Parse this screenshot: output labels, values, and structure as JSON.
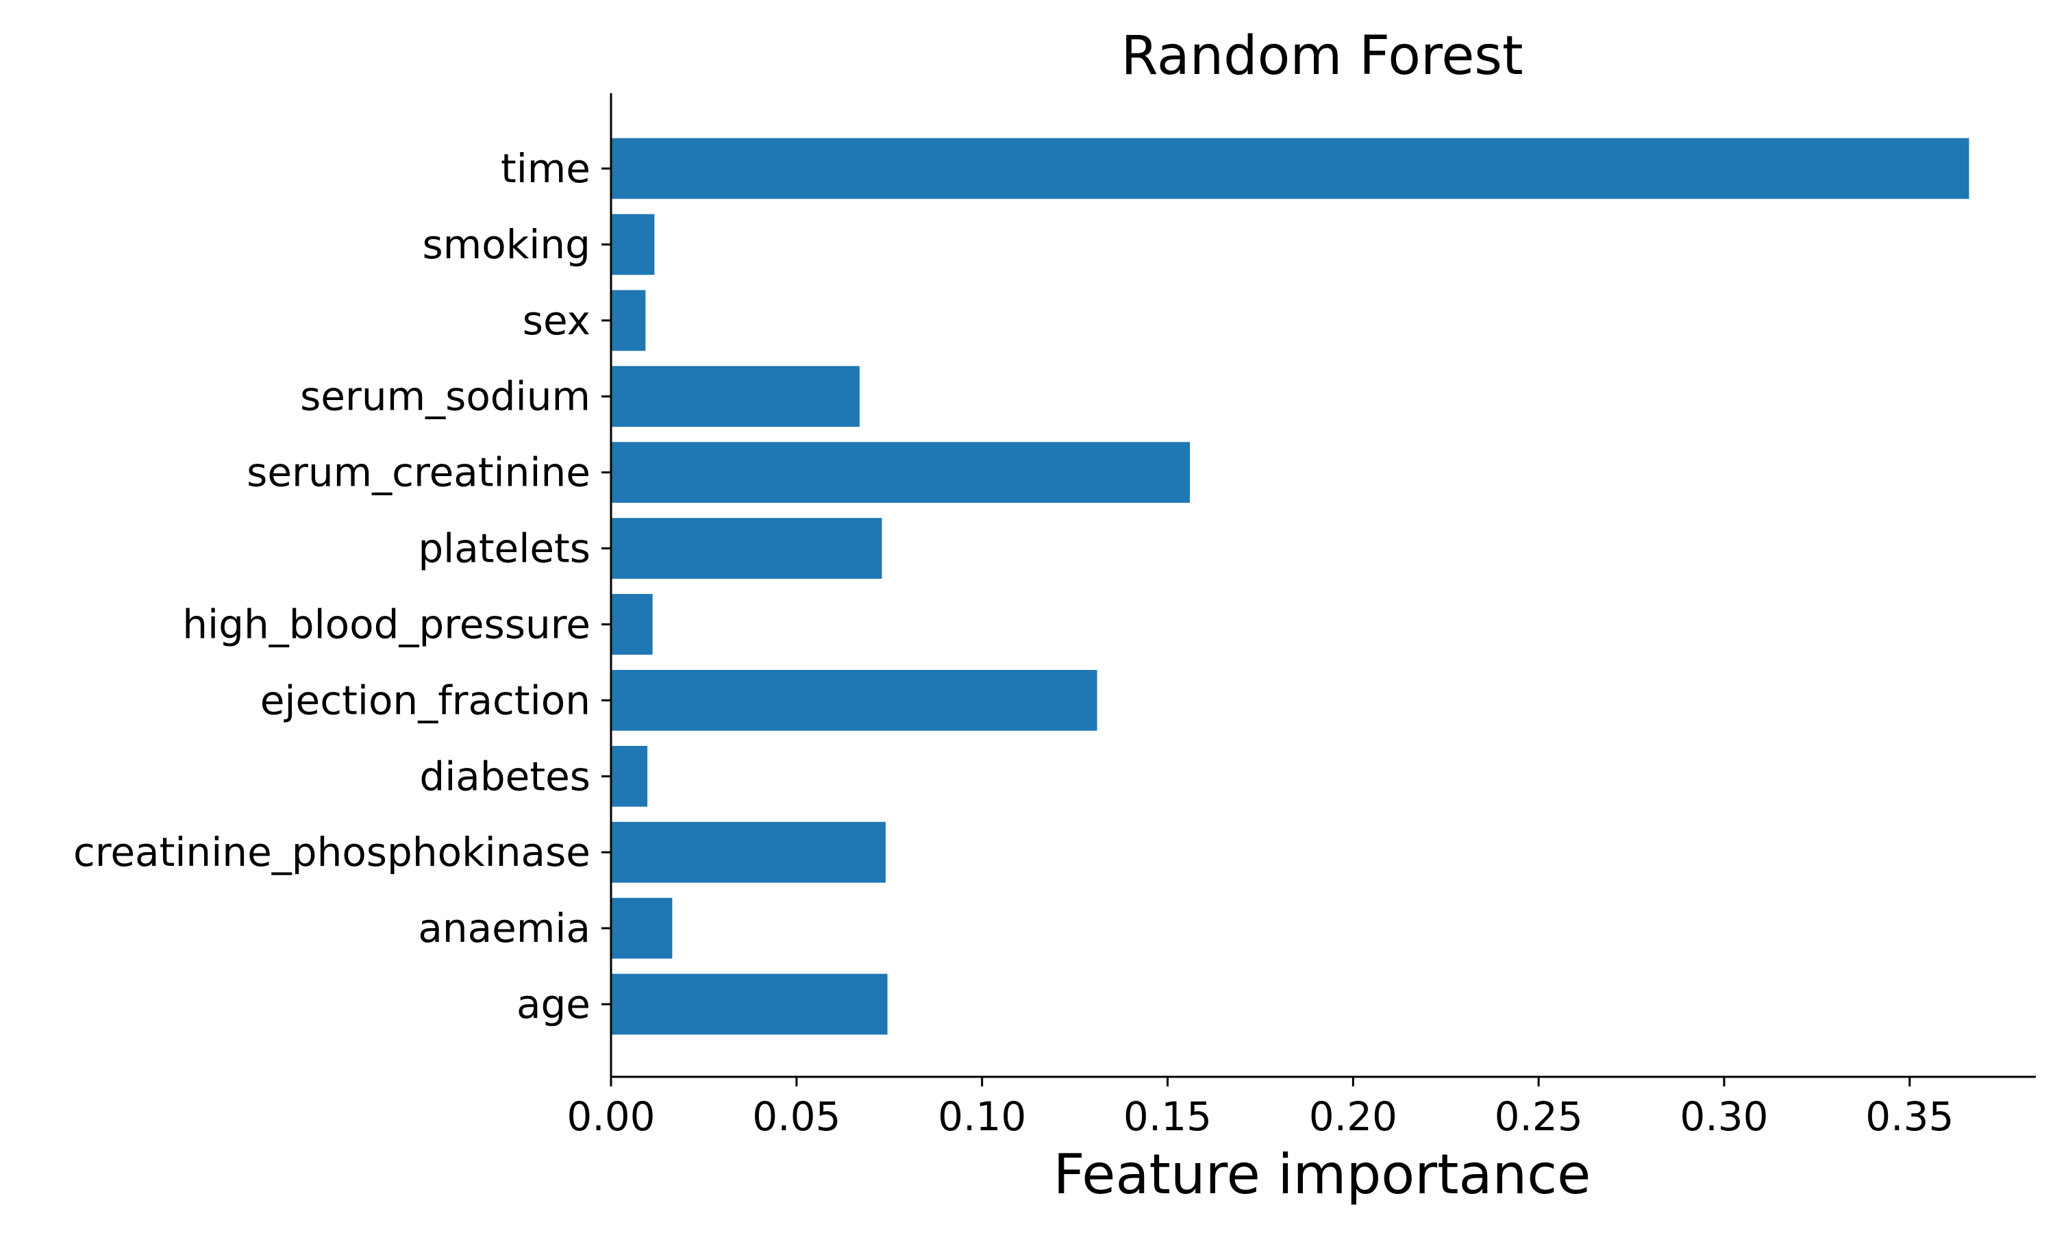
{
  "chart_data": {
    "type": "bar",
    "orientation": "horizontal",
    "title": "Random Forest",
    "xlabel": "Feature importance",
    "ylabel": "",
    "categories": [
      "age",
      "anaemia",
      "creatinine_phosphokinase",
      "diabetes",
      "ejection_fraction",
      "high_blood_pressure",
      "platelets",
      "serum_creatinine",
      "serum_sodium",
      "sex",
      "smoking",
      "time"
    ],
    "values": [
      0.0745,
      0.0165,
      0.074,
      0.0098,
      0.131,
      0.0112,
      0.073,
      0.156,
      0.067,
      0.0093,
      0.0117,
      0.366
    ],
    "xlim": [
      0,
      0.384
    ],
    "xticks": [
      "0.00",
      "0.05",
      "0.10",
      "0.15",
      "0.20",
      "0.25",
      "0.30",
      "0.35"
    ],
    "xtick_values": [
      0,
      0.05,
      0.1,
      0.15,
      0.2,
      0.25,
      0.3,
      0.35
    ],
    "bar_color": "#1f77b4",
    "grid": false,
    "legend": "none"
  }
}
